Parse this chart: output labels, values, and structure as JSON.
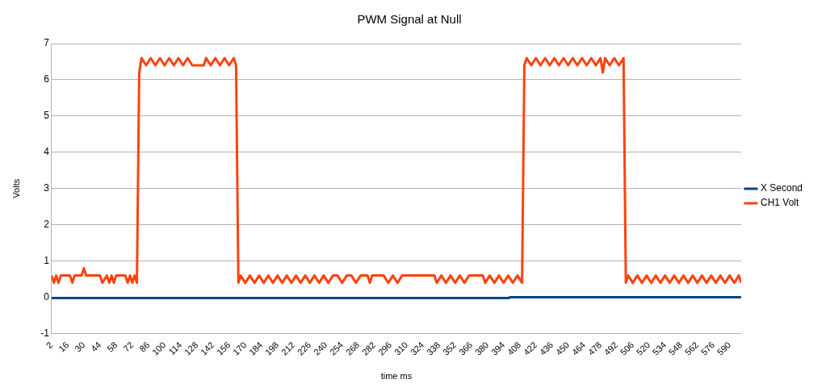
{
  "chart_data": {
    "type": "line",
    "title": "PWM Signal at Null",
    "xlabel": "time ms",
    "ylabel": "Volts",
    "xlim": [
      2,
      600
    ],
    "xticks": [
      2,
      16,
      30,
      44,
      58,
      72,
      86,
      100,
      114,
      128,
      142,
      156,
      170,
      184,
      198,
      212,
      226,
      240,
      254,
      268,
      282,
      296,
      310,
      324,
      338,
      352,
      366,
      380,
      394,
      408,
      422,
      436,
      450,
      464,
      478,
      492,
      506,
      520,
      534,
      548,
      562,
      576,
      590
    ],
    "ylim": [
      -1,
      7
    ],
    "yticks": [
      -1,
      0,
      1,
      2,
      3,
      4,
      5,
      6,
      7
    ],
    "grid": "y",
    "legend": "right",
    "marker": "none",
    "line_style": "solid",
    "series": [
      {
        "name": "X Second",
        "color": "#004586",
        "x": [
          2,
          398,
          400,
          600
        ],
        "values": [
          -0.02,
          -0.02,
          0,
          0
        ]
      },
      {
        "name": "CH1 Volt",
        "color": "#ff420e",
        "x": [
          2,
          4,
          6,
          8,
          10,
          12,
          18,
          20,
          22,
          28,
          30,
          32,
          44,
          46,
          50,
          52,
          54,
          56,
          58,
          66,
          68,
          70,
          72,
          74,
          76,
          78,
          80,
          84,
          88,
          92,
          96,
          100,
          104,
          108,
          112,
          116,
          120,
          124,
          128,
          134,
          136,
          140,
          144,
          148,
          152,
          156,
          160,
          162,
          164,
          166,
          170,
          174,
          178,
          182,
          186,
          190,
          194,
          198,
          202,
          206,
          210,
          214,
          218,
          222,
          226,
          230,
          234,
          238,
          242,
          246,
          250,
          254,
          258,
          262,
          266,
          270,
          276,
          278,
          280,
          290,
          294,
          298,
          302,
          306,
          310,
          334,
          336,
          340,
          344,
          348,
          352,
          356,
          360,
          364,
          376,
          378,
          382,
          386,
          390,
          394,
          398,
          402,
          406,
          410,
          412,
          414,
          418,
          422,
          426,
          430,
          434,
          438,
          442,
          446,
          450,
          454,
          458,
          462,
          466,
          470,
          474,
          478,
          480,
          482,
          486,
          490,
          494,
          498,
          500,
          502,
          506,
          510,
          514,
          518,
          522,
          526,
          530,
          534,
          538,
          542,
          546,
          550,
          554,
          558,
          562,
          566,
          570,
          574,
          578,
          582,
          586,
          590,
          594,
          598,
          600
        ],
        "values": [
          0.6,
          0.4,
          0.6,
          0.4,
          0.6,
          0.6,
          0.6,
          0.4,
          0.6,
          0.6,
          0.8,
          0.6,
          0.6,
          0.4,
          0.6,
          0.4,
          0.6,
          0.4,
          0.6,
          0.6,
          0.4,
          0.6,
          0.4,
          0.6,
          0.4,
          6.2,
          6.6,
          6.4,
          6.6,
          6.4,
          6.6,
          6.4,
          6.6,
          6.4,
          6.6,
          6.4,
          6.6,
          6.4,
          6.4,
          6.4,
          6.6,
          6.4,
          6.6,
          6.4,
          6.6,
          6.4,
          6.6,
          6.4,
          0.4,
          0.6,
          0.4,
          0.6,
          0.4,
          0.6,
          0.4,
          0.6,
          0.4,
          0.6,
          0.4,
          0.6,
          0.4,
          0.6,
          0.4,
          0.6,
          0.4,
          0.6,
          0.4,
          0.6,
          0.4,
          0.6,
          0.6,
          0.4,
          0.6,
          0.6,
          0.4,
          0.6,
          0.6,
          0.4,
          0.6,
          0.6,
          0.4,
          0.6,
          0.4,
          0.6,
          0.6,
          0.6,
          0.4,
          0.6,
          0.4,
          0.6,
          0.4,
          0.6,
          0.4,
          0.6,
          0.6,
          0.4,
          0.6,
          0.4,
          0.6,
          0.4,
          0.6,
          0.4,
          0.6,
          0.4,
          6.4,
          6.6,
          6.4,
          6.6,
          6.4,
          6.6,
          6.4,
          6.6,
          6.4,
          6.6,
          6.4,
          6.6,
          6.4,
          6.6,
          6.4,
          6.6,
          6.4,
          6.6,
          6.2,
          6.6,
          6.4,
          6.6,
          6.4,
          6.6,
          0.4,
          0.6,
          0.4,
          0.6,
          0.4,
          0.6,
          0.4,
          0.6,
          0.4,
          0.6,
          0.4,
          0.6,
          0.4,
          0.6,
          0.4,
          0.6,
          0.4,
          0.6,
          0.4,
          0.6,
          0.4,
          0.6,
          0.4,
          0.6,
          0.4,
          0.6,
          0.4
        ]
      }
    ]
  }
}
